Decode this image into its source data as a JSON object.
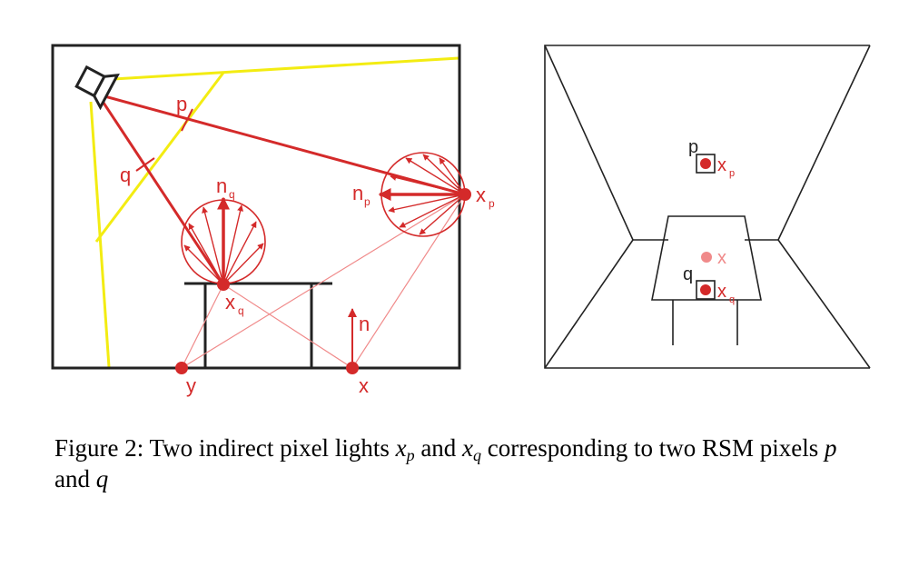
{
  "colors": {
    "red": "#d42a2a",
    "light_red": "#f08a8a",
    "yellow": "#f3ec12",
    "black": "#222222"
  },
  "left_panel": {
    "labels": {
      "p": "p",
      "q": "q",
      "n_q": "n",
      "n_q_sub": "q",
      "n_p": "n",
      "n_p_sub": "p",
      "x_p": "x",
      "x_p_sub": "p",
      "x_q": "x",
      "x_q_sub": "q",
      "n": "n",
      "y": "y",
      "x": "x"
    },
    "icons": [
      "spotlight-icon"
    ]
  },
  "right_panel": {
    "labels": {
      "p": "p",
      "x_p": "x",
      "x_p_sub": "p",
      "x": "x",
      "q": "q",
      "x_q": "x",
      "x_q_sub": "q"
    }
  },
  "caption": {
    "prefix": "Figure 2: Two indirect pixel lights ",
    "var1": "x",
    "var1_sub": "p",
    "mid1": " and ",
    "var2": "x",
    "var2_sub": "q",
    "mid2": " corresponding to two RSM pixels ",
    "var3": "p",
    "mid3": " and ",
    "var4": "q"
  }
}
